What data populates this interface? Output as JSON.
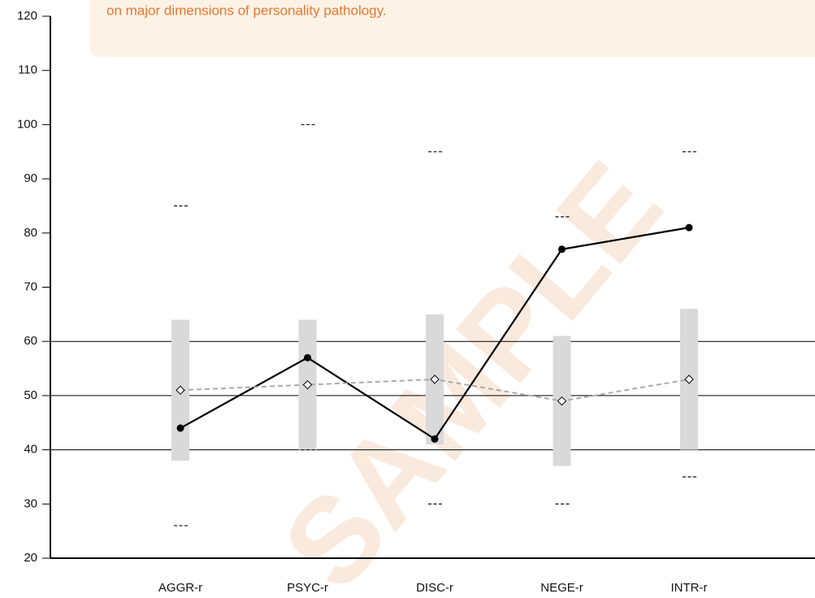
{
  "chart_data": {
    "type": "profile",
    "annotation": "on major dimensions of personality pathology.",
    "watermark": "SAMPLE",
    "categories": [
      "AGGR-r",
      "PSYC-r",
      "DISC-r",
      "NEGE-r",
      "INTR-r"
    ],
    "series": [
      {
        "color": "#000000",
        "style": "solid",
        "marker": "circle",
        "values": [
          44,
          57,
          42,
          77,
          81
        ]
      },
      {
        "color": "#aaaaaa",
        "style": "dashed",
        "marker": "diamond",
        "values": [
          51,
          52,
          53,
          49,
          53
        ]
      }
    ],
    "ranges": {
      "color": "#d9d9d9",
      "low": [
        38,
        40,
        41,
        37,
        40
      ],
      "high": [
        64,
        64,
        65,
        61,
        66
      ]
    },
    "limits": {
      "low": [
        26,
        40,
        30,
        30,
        35
      ],
      "high": [
        85,
        100,
        95,
        83,
        95
      ]
    },
    "reference_lines": [
      40,
      50,
      60
    ],
    "ylim": [
      20,
      120
    ],
    "yticks": [
      20,
      30,
      40,
      50,
      60,
      70,
      80,
      90,
      100,
      110,
      120
    ],
    "grid": false
  }
}
